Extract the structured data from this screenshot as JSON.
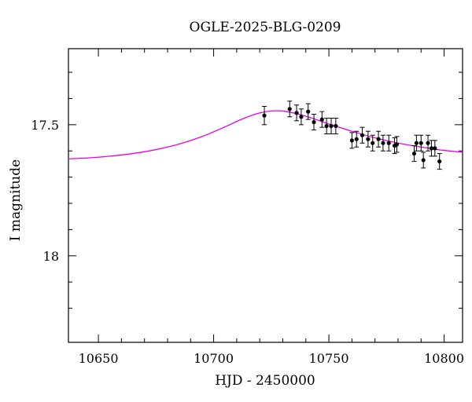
{
  "chart_data": {
    "type": "scatter",
    "title": "OGLE-2025-BLG-0209",
    "xlabel": "HJD - 2450000",
    "ylabel": "I magnitude",
    "xlim": [
      10637,
      10808
    ],
    "ylim": [
      18.33,
      17.21
    ],
    "y_inverted": true,
    "grid": false,
    "x_major_ticks": [
      10650,
      10700,
      10750,
      10800
    ],
    "x_tick_labels": [
      "10650",
      "10700",
      "10750",
      "10800"
    ],
    "x_minor_ticks": [
      10660,
      10670,
      10680,
      10690,
      10710,
      10720,
      10730,
      10740,
      10760,
      10770,
      10780,
      10790
    ],
    "y_major_ticks": [
      17.5,
      18.0
    ],
    "y_tick_labels": [
      "17.5",
      "18"
    ],
    "y_minor_ticks": [
      17.3,
      17.4,
      17.6,
      17.7,
      17.8,
      17.9,
      18.1,
      18.2
    ],
    "colors": {
      "model": "#e600e6",
      "points": "#000000",
      "axes": "#000000"
    },
    "series": [
      {
        "kind": "observations",
        "x": [
          10722,
          10733,
          10736,
          10738,
          10741,
          10743.5,
          10747,
          10749,
          10751,
          10753,
          10760,
          10762,
          10764.5,
          10767,
          10769,
          10771.5,
          10773.5,
          10776,
          10778.5,
          10779.5,
          10787,
          10788,
          10790,
          10791,
          10793,
          10794.5,
          10796,
          10798
        ],
        "y": [
          17.465,
          17.44,
          17.455,
          17.47,
          17.45,
          17.49,
          17.48,
          17.505,
          17.505,
          17.505,
          17.56,
          17.555,
          17.54,
          17.555,
          17.57,
          17.555,
          17.57,
          17.57,
          17.58,
          17.575,
          17.61,
          17.57,
          17.57,
          17.635,
          17.57,
          17.59,
          17.59,
          17.64
        ],
        "yerr": [
          0.035,
          0.03,
          0.03,
          0.03,
          0.03,
          0.03,
          0.03,
          0.03,
          0.03,
          0.03,
          0.03,
          0.03,
          0.03,
          0.03,
          0.03,
          0.03,
          0.03,
          0.03,
          0.03,
          0.03,
          0.03,
          0.03,
          0.03,
          0.03,
          0.03,
          0.03,
          0.03,
          0.03
        ]
      },
      {
        "kind": "model",
        "x": [
          10637,
          10645,
          10655,
          10665,
          10675,
          10685,
          10695,
          10705,
          10712,
          10718,
          10723,
          10727,
          10731,
          10736,
          10742,
          10750,
          10760,
          10770,
          10780,
          10790,
          10800,
          10808
        ],
        "y": [
          17.63,
          17.627,
          17.62,
          17.61,
          17.595,
          17.574,
          17.545,
          17.508,
          17.48,
          17.46,
          17.45,
          17.447,
          17.449,
          17.458,
          17.473,
          17.497,
          17.525,
          17.55,
          17.57,
          17.585,
          17.598,
          17.605
        ]
      }
    ]
  }
}
